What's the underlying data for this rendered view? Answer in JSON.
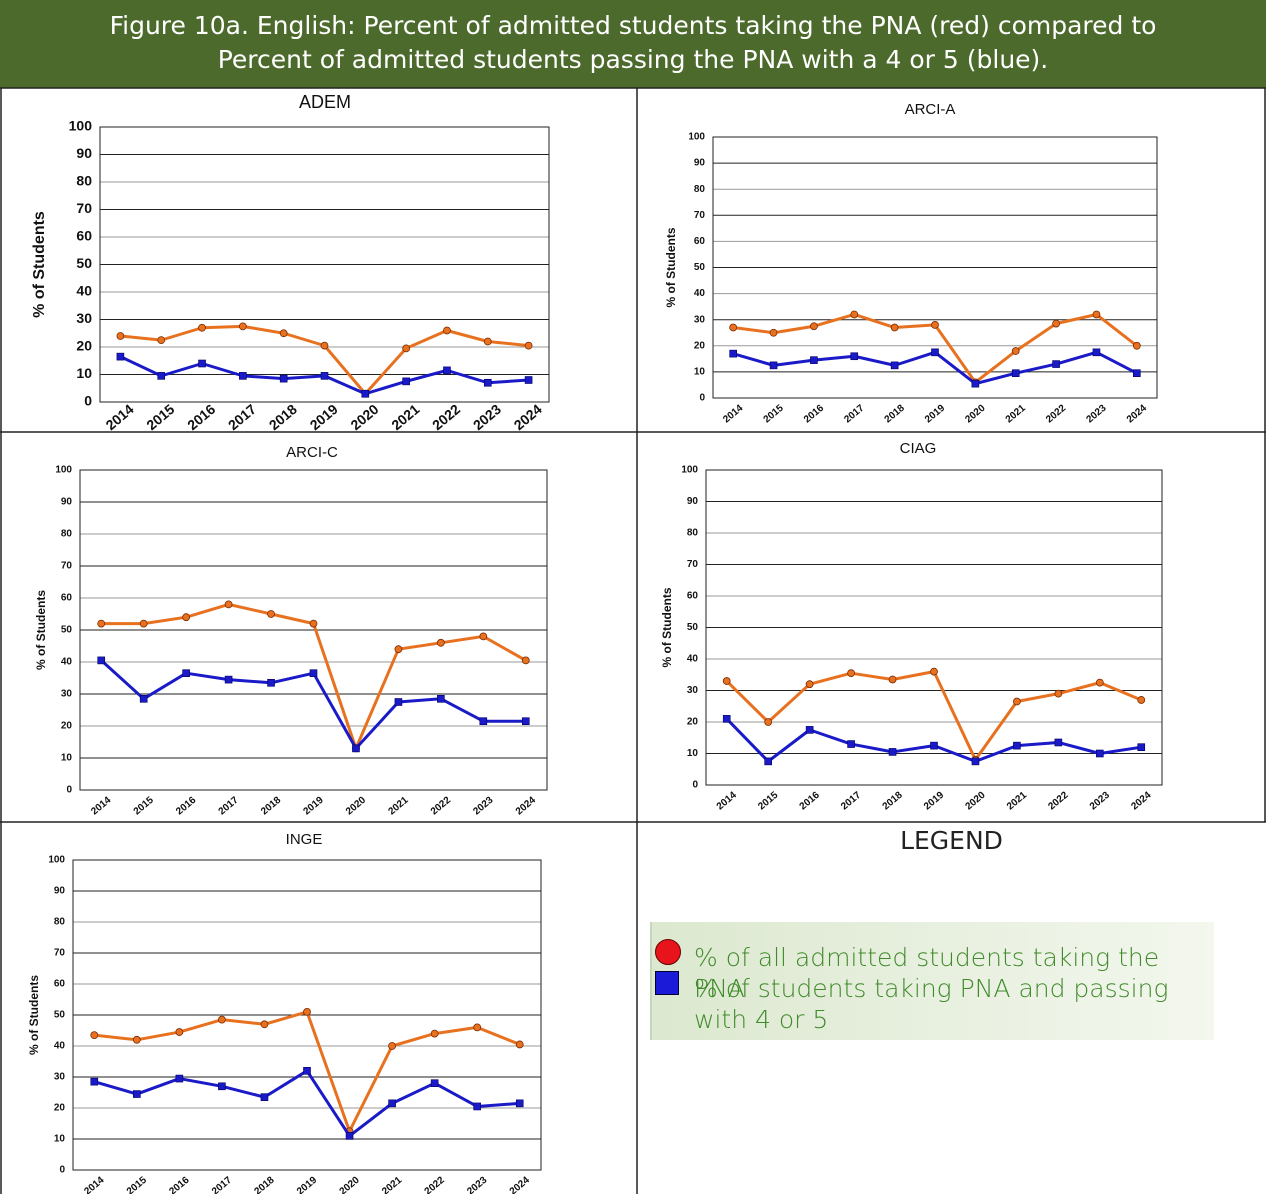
{
  "header": {
    "title": "Figure 10a. English: Percent of admitted students taking the PNA (red) compared to Percent of admitted students passing the PNA with a 4 or 5 (blue)."
  },
  "legend": {
    "title": "LEGEND",
    "items": [
      "% of all admitted students taking the PNA",
      "% of students taking PNA and passing with 4 or 5"
    ]
  },
  "chart_data": [
    {
      "type": "line",
      "title": "ADEM",
      "y_label": "% of Students",
      "categories": [
        "2014",
        "2015",
        "2016",
        "2017",
        "2018",
        "2019",
        "2020",
        "2021",
        "2022",
        "2023",
        "2024"
      ],
      "ylim": [
        0,
        100
      ],
      "yticks": [
        0,
        10,
        20,
        30,
        40,
        50,
        60,
        70,
        80,
        90,
        100
      ],
      "grid": true,
      "series": [
        {
          "color": "#e8711f",
          "marker": "circle",
          "values": [
            24,
            22.5,
            27,
            27.5,
            25,
            20.5,
            3,
            19.5,
            26,
            22,
            20.5
          ]
        },
        {
          "color": "#1a1ac8",
          "marker": "square",
          "values": [
            16.5,
            9.5,
            14,
            9.5,
            8.5,
            9.5,
            3,
            7.5,
            11.5,
            7,
            8
          ]
        }
      ]
    },
    {
      "type": "line",
      "title": "ARCI-A",
      "y_label": "% of Students",
      "categories": [
        "2014",
        "2015",
        "2016",
        "2017",
        "2018",
        "2019",
        "2020",
        "2021",
        "2022",
        "2023",
        "2024"
      ],
      "ylim": [
        0,
        100
      ],
      "yticks": [
        0,
        10,
        20,
        30,
        40,
        50,
        60,
        70,
        80,
        90,
        100
      ],
      "grid": true,
      "series": [
        {
          "color": "#e8711f",
          "marker": "circle",
          "values": [
            27,
            25,
            27.5,
            32,
            27,
            28,
            6,
            18,
            28.5,
            32,
            20
          ]
        },
        {
          "color": "#1a1ac8",
          "marker": "square",
          "values": [
            17,
            12.5,
            14.5,
            16,
            12.5,
            17.5,
            5.5,
            9.5,
            13,
            17.5,
            9.5
          ]
        }
      ]
    },
    {
      "type": "line",
      "title": "ARCI-C",
      "y_label": "% of Students",
      "categories": [
        "2014",
        "2015",
        "2016",
        "2017",
        "2018",
        "2019",
        "2020",
        "2021",
        "2022",
        "2023",
        "2024"
      ],
      "ylim": [
        0,
        100
      ],
      "yticks": [
        0,
        10,
        20,
        30,
        40,
        50,
        60,
        70,
        80,
        90,
        100
      ],
      "grid": true,
      "series": [
        {
          "color": "#e8711f",
          "marker": "circle",
          "values": [
            52,
            52,
            54,
            58,
            55,
            52,
            13,
            44,
            46,
            48,
            40.5
          ]
        },
        {
          "color": "#1a1ac8",
          "marker": "square",
          "values": [
            40.5,
            28.5,
            36.5,
            34.5,
            33.5,
            36.5,
            13,
            27.5,
            28.5,
            21.5,
            21.5
          ]
        }
      ]
    },
    {
      "type": "line",
      "title": "CIAG",
      "y_label": "% of Students",
      "categories": [
        "2014",
        "2015",
        "2016",
        "2017",
        "2018",
        "2019",
        "2020",
        "2021",
        "2022",
        "2023",
        "2024"
      ],
      "ylim": [
        0,
        100
      ],
      "yticks": [
        0,
        10,
        20,
        30,
        40,
        50,
        60,
        70,
        80,
        90,
        100
      ],
      "grid": true,
      "series": [
        {
          "color": "#e8711f",
          "marker": "circle",
          "values": [
            33,
            20,
            32,
            35.5,
            33.5,
            36,
            8,
            26.5,
            29,
            32.5,
            27
          ]
        },
        {
          "color": "#1a1ac8",
          "marker": "square",
          "values": [
            21,
            7.5,
            17.5,
            13,
            10.5,
            12.5,
            7.5,
            12.5,
            13.5,
            10,
            12
          ]
        }
      ]
    },
    {
      "type": "line",
      "title": "INGE",
      "y_label": "% of Students",
      "categories": [
        "2014",
        "2015",
        "2016",
        "2017",
        "2018",
        "2019",
        "2020",
        "2021",
        "2022",
        "2023",
        "2024"
      ],
      "ylim": [
        0,
        100
      ],
      "yticks": [
        0,
        10,
        20,
        30,
        40,
        50,
        60,
        70,
        80,
        90,
        100
      ],
      "grid": true,
      "series": [
        {
          "color": "#e8711f",
          "marker": "circle",
          "values": [
            43.5,
            42,
            44.5,
            48.5,
            47,
            51,
            12.5,
            40,
            44,
            46,
            40.5
          ]
        },
        {
          "color": "#1a1ac8",
          "marker": "square",
          "values": [
            28.5,
            24.5,
            29.5,
            27,
            23.5,
            32,
            11,
            21.5,
            28,
            20.5,
            21.5
          ]
        }
      ]
    }
  ]
}
